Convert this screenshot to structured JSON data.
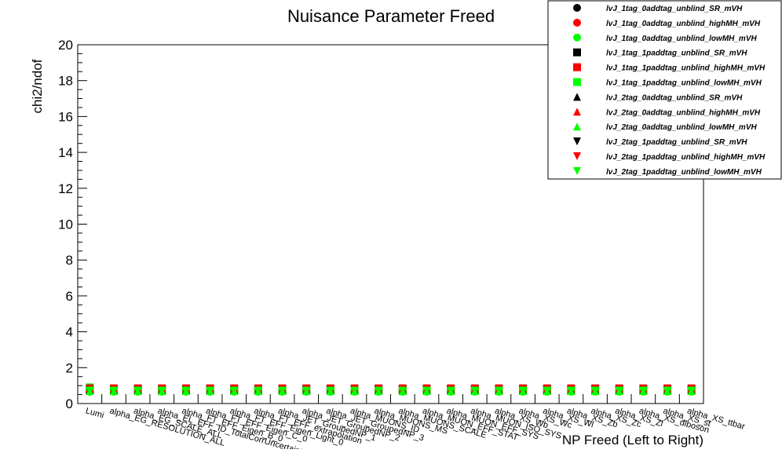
{
  "chart_data": {
    "type": "scatter",
    "title": "Nuisance Parameter Freed",
    "xlabel": "NP Freed (Left to Right)",
    "ylabel": "chi2/ndof",
    "ylim": [
      0,
      20
    ],
    "yticks": [
      0,
      2,
      4,
      6,
      8,
      10,
      12,
      14,
      16,
      18,
      20
    ],
    "categories": [
      "Lumi",
      "alpha_EG_RESOLUTION_ALL",
      "alpha_EG_SCALE_ALL",
      "alpha_EL_EFF_ID_TotalCorrUncertainty",
      "alpha_FT_EFF_Eigen_B_0",
      "alpha_FT_EFF_Eigen_C_0",
      "alpha_FT_EFF_Eigen_Light_0",
      "alpha_FT_EFF_extrapolation",
      "alpha_JET_GroupedNP_1",
      "alpha_JET_GroupedNP_2",
      "alpha_JET_GroupedNP_3",
      "alpha_MUONS_ID",
      "alpha_MUONS_MS",
      "alpha_MUONS_SCALE",
      "alpha_MUON_EFF_STAT",
      "alpha_MUON_EFF_SYS",
      "alpha_MUON_ISO_SYS",
      "alpha_XS_Wb",
      "alpha_XS_Wc",
      "alpha_XS_Wl",
      "alpha_XS_Zb",
      "alpha_XS_Zc",
      "alpha_XS_Zl",
      "alpha_XS_diboson",
      "alpha_XS_st",
      "alpha_XS_ttbar"
    ],
    "legend_position": "top-right",
    "series": [
      {
        "name": "lvJ_1tag_0addtag_unblind_SR_mVH",
        "marker": "circle",
        "color": "#000000",
        "values": [
          0.78,
          0.78,
          0.78,
          0.78,
          0.78,
          0.78,
          0.78,
          0.78,
          0.78,
          0.78,
          0.78,
          0.78,
          0.78,
          0.78,
          0.78,
          0.78,
          0.78,
          0.78,
          0.78,
          0.78,
          0.78,
          0.78,
          0.78,
          0.78,
          0.78,
          0.78
        ]
      },
      {
        "name": "lvJ_1tag_0addtag_unblind_highMH_mVH",
        "marker": "circle",
        "color": "#ff0000",
        "values": [
          0.78,
          0.78,
          0.78,
          0.78,
          0.78,
          0.78,
          0.78,
          0.78,
          0.78,
          0.78,
          0.78,
          0.78,
          0.78,
          0.78,
          0.78,
          0.78,
          0.78,
          0.78,
          0.78,
          0.78,
          0.78,
          0.78,
          0.78,
          0.78,
          0.78,
          0.78
        ]
      },
      {
        "name": "lvJ_1tag_0addtag_unblind_lowMH_mVH",
        "marker": "circle",
        "color": "#00ff00",
        "values": [
          0.65,
          0.65,
          0.65,
          0.65,
          0.65,
          0.65,
          0.65,
          0.65,
          0.65,
          0.65,
          0.65,
          0.65,
          0.65,
          0.65,
          0.65,
          0.65,
          0.65,
          0.65,
          0.65,
          0.65,
          0.65,
          0.65,
          0.65,
          0.65,
          0.65,
          0.65
        ]
      },
      {
        "name": "lvJ_1tag_1paddtag_unblind_SR_mVH",
        "marker": "square",
        "color": "#000000",
        "values": [
          0.78,
          0.78,
          0.78,
          0.78,
          0.78,
          0.78,
          0.78,
          0.78,
          0.78,
          0.78,
          0.78,
          0.78,
          0.78,
          0.78,
          0.78,
          0.78,
          0.78,
          0.78,
          0.78,
          0.78,
          0.78,
          0.78,
          0.78,
          0.78,
          0.78,
          0.78
        ]
      },
      {
        "name": "lvJ_1tag_1paddtag_unblind_highMH_mVH",
        "marker": "square",
        "color": "#ff0000",
        "values": [
          0.8,
          0.8,
          0.8,
          0.8,
          0.8,
          0.8,
          0.8,
          0.8,
          0.8,
          0.8,
          0.8,
          0.8,
          0.8,
          0.8,
          0.8,
          0.8,
          0.8,
          0.8,
          0.8,
          0.8,
          0.8,
          0.8,
          0.8,
          0.8,
          0.8,
          0.8
        ]
      },
      {
        "name": "lvJ_1tag_1paddtag_unblind_lowMH_mVH",
        "marker": "square",
        "color": "#00ff00",
        "values": [
          0.9,
          0.7,
          0.7,
          0.7,
          0.7,
          0.7,
          0.7,
          0.7,
          0.7,
          0.7,
          0.7,
          0.7,
          0.7,
          0.7,
          0.7,
          0.7,
          0.7,
          0.7,
          0.7,
          0.7,
          0.7,
          0.7,
          0.7,
          0.7,
          0.7,
          0.7
        ]
      },
      {
        "name": "lvJ_2tag_0addtag_unblind_SR_mVH",
        "marker": "triangle-up",
        "color": "#000000",
        "values": [
          0.75,
          0.75,
          0.75,
          0.75,
          0.75,
          0.75,
          0.75,
          0.75,
          0.75,
          0.75,
          0.75,
          0.75,
          0.75,
          0.75,
          0.75,
          0.75,
          0.75,
          0.75,
          0.75,
          0.75,
          0.75,
          0.75,
          0.75,
          0.75,
          0.75,
          0.75
        ]
      },
      {
        "name": "lvJ_2tag_0addtag_unblind_highMH_mVH",
        "marker": "triangle-up",
        "color": "#ff0000",
        "values": [
          0.85,
          0.85,
          0.85,
          0.85,
          0.85,
          0.85,
          0.85,
          0.85,
          0.85,
          0.85,
          0.85,
          0.85,
          0.85,
          0.85,
          0.85,
          0.85,
          0.85,
          0.85,
          0.85,
          0.85,
          0.85,
          0.85,
          0.85,
          0.85,
          0.85,
          0.85
        ]
      },
      {
        "name": "lvJ_2tag_0addtag_unblind_lowMH_mVH",
        "marker": "triangle-up",
        "color": "#00ff00",
        "values": [
          0.7,
          0.7,
          0.7,
          0.7,
          0.7,
          0.7,
          0.7,
          0.7,
          0.7,
          0.7,
          0.7,
          0.7,
          0.7,
          0.7,
          0.7,
          0.7,
          0.7,
          0.7,
          0.7,
          0.7,
          0.7,
          0.7,
          0.7,
          0.7,
          0.7,
          0.7
        ]
      },
      {
        "name": "lvJ_2tag_1paddtag_unblind_SR_mVH",
        "marker": "triangle-down",
        "color": "#000000",
        "values": [
          0.8,
          0.8,
          0.8,
          0.8,
          0.8,
          0.8,
          0.8,
          0.8,
          0.8,
          0.8,
          0.8,
          0.8,
          0.8,
          0.8,
          0.8,
          0.8,
          0.8,
          0.8,
          0.8,
          0.8,
          0.8,
          0.8,
          0.8,
          0.8,
          0.8,
          0.8
        ]
      },
      {
        "name": "lvJ_2tag_1paddtag_unblind_highMH_mVH",
        "marker": "triangle-down",
        "color": "#ff0000",
        "values": [
          0.85,
          0.85,
          0.85,
          0.85,
          0.85,
          0.85,
          0.85,
          0.85,
          0.85,
          0.85,
          0.85,
          0.85,
          0.85,
          0.85,
          0.85,
          0.85,
          0.85,
          0.85,
          0.85,
          0.85,
          0.85,
          0.85,
          0.85,
          0.85,
          0.85,
          0.85
        ]
      },
      {
        "name": "lvJ_2tag_1paddtag_unblind_lowMH_mVH",
        "marker": "triangle-down",
        "color": "#00ff00",
        "values": [
          0.72,
          0.72,
          0.72,
          0.72,
          0.72,
          0.72,
          0.72,
          0.72,
          0.72,
          0.72,
          0.72,
          0.72,
          0.72,
          0.72,
          0.72,
          0.72,
          0.72,
          0.72,
          0.72,
          0.72,
          0.72,
          0.72,
          0.72,
          0.72,
          0.72,
          0.72
        ]
      }
    ]
  }
}
